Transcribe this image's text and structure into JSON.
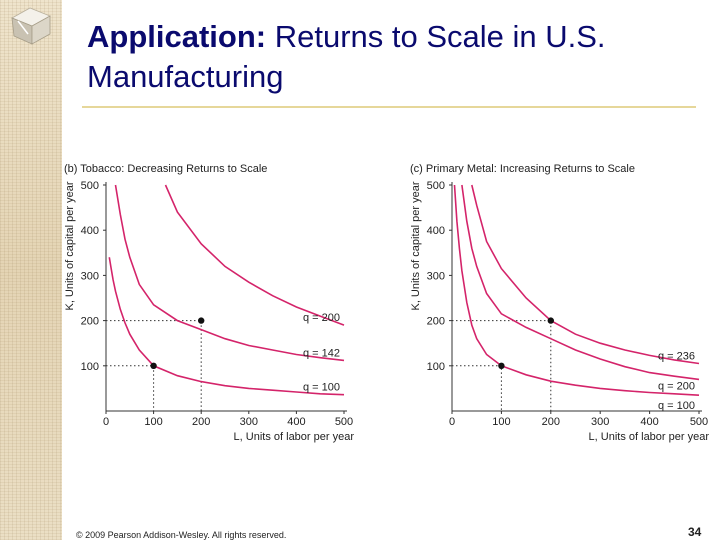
{
  "slide": {
    "title_strong": "Application:",
    "title_rest": "Returns to Scale in U.S. Manufacturing",
    "footer": "© 2009 Pearson Addison-Wesley. All rights reserved.",
    "page_number": "34"
  },
  "colors": {
    "title": "#0a0a6e",
    "curve": "#d4246a",
    "rule": "#e6d79a"
  },
  "chart_data": [
    {
      "type": "line",
      "panel": "(b)",
      "title": "(b) Tobacco: Decreasing Returns to Scale",
      "xlabel": "L, Units of labor per year",
      "ylabel": "K, Units of capital per year",
      "xlim": [
        0,
        500
      ],
      "ylim": [
        0,
        500
      ],
      "x_ticks": [
        "0",
        "100",
        "200",
        "300",
        "400",
        "500"
      ],
      "y_ticks": [
        "100",
        "200",
        "300",
        "400",
        "500"
      ],
      "series": [
        {
          "name": "q = 100",
          "label": "q = 100",
          "x": [
            7,
            10,
            15,
            20,
            30,
            40,
            50,
            70,
            100,
            150,
            200,
            250,
            300,
            350,
            400,
            450,
            500
          ],
          "y": [
            340,
            320,
            290,
            265,
            225,
            195,
            170,
            135,
            100,
            78,
            65,
            56,
            50,
            46,
            42,
            38,
            36
          ]
        },
        {
          "name": "q = 142",
          "label": "q = 142",
          "x": [
            20,
            30,
            40,
            50,
            70,
            100,
            150,
            200,
            250,
            300,
            350,
            400,
            450,
            500
          ],
          "y": [
            500,
            435,
            380,
            340,
            280,
            235,
            200,
            180,
            160,
            145,
            135,
            125,
            118,
            112
          ]
        },
        {
          "name": "q = 200",
          "label": "q = 200",
          "x": [
            125,
            150,
            200,
            250,
            300,
            350,
            400,
            450,
            500
          ],
          "y": [
            500,
            440,
            370,
            320,
            285,
            255,
            230,
            210,
            190
          ]
        }
      ],
      "points": [
        {
          "x": 100,
          "y": 100
        },
        {
          "x": 200,
          "y": 200
        }
      ]
    },
    {
      "type": "line",
      "panel": "(c)",
      "title": "(c) Primary Metal: Increasing Returns to Scale",
      "xlabel": "L, Units of labor per year",
      "ylabel": "K, Units of capital per year",
      "xlim": [
        0,
        500
      ],
      "ylim": [
        0,
        500
      ],
      "x_ticks": [
        "0",
        "100",
        "200",
        "300",
        "400",
        "500"
      ],
      "y_ticks": [
        "100",
        "200",
        "300",
        "400",
        "500"
      ],
      "series": [
        {
          "name": "q = 100",
          "label": "q = 100",
          "x": [
            5,
            10,
            15,
            20,
            30,
            40,
            50,
            70,
            100,
            150,
            200,
            250,
            300,
            350,
            400,
            450,
            500
          ],
          "y": [
            500,
            420,
            360,
            310,
            240,
            190,
            160,
            125,
            100,
            80,
            66,
            57,
            50,
            45,
            41,
            38,
            35
          ]
        },
        {
          "name": "q = 200",
          "label": "q = 200",
          "x": [
            20,
            30,
            40,
            50,
            70,
            100,
            150,
            200,
            250,
            300,
            350,
            400,
            450,
            500
          ],
          "y": [
            500,
            420,
            360,
            320,
            260,
            215,
            185,
            160,
            135,
            115,
            98,
            85,
            77,
            70
          ]
        },
        {
          "name": "q = 236",
          "label": "q = 236",
          "x": [
            40,
            50,
            70,
            100,
            150,
            200,
            250,
            300,
            350,
            400,
            450,
            500
          ],
          "y": [
            500,
            455,
            375,
            315,
            250,
            200,
            170,
            150,
            135,
            123,
            113,
            105
          ]
        }
      ],
      "points": [
        {
          "x": 100,
          "y": 100
        },
        {
          "x": 200,
          "y": 200
        }
      ]
    }
  ]
}
